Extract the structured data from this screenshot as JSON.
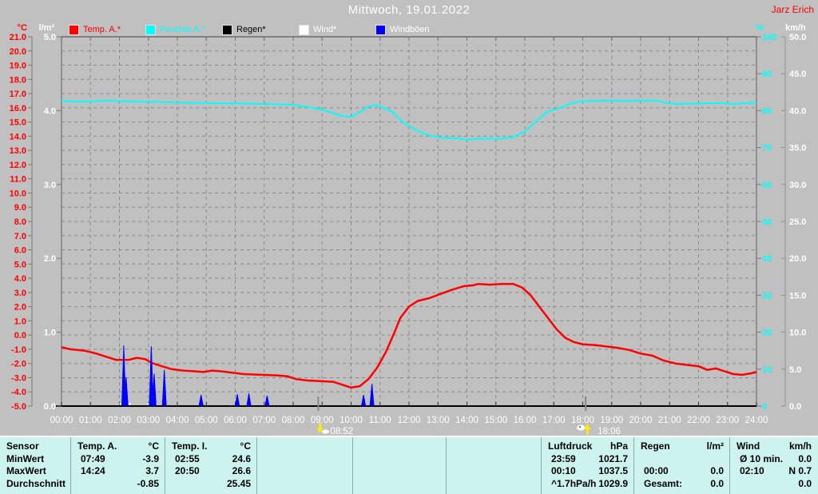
{
  "header": {
    "title": "Mittwoch, 19.01.2022",
    "station": "Jarz Erich"
  },
  "legend": [
    {
      "label": "Temp. A.*",
      "swatch": "#ff0000",
      "text_color": "#ff0000"
    },
    {
      "label": "Feuchte A.*",
      "swatch": "#00ffff",
      "text_color": "#00ffff"
    },
    {
      "label": "Regen*",
      "swatch": "#000000",
      "text_color": "#000000"
    },
    {
      "label": "Wind*",
      "swatch": "#ffffff",
      "text_color": "#ffffff"
    },
    {
      "label": "Windböen",
      "swatch": "#0000ff",
      "text_color": "#ffffff"
    }
  ],
  "axes": {
    "temp": {
      "unit": "°C",
      "color": "#ff0000",
      "max": 21,
      "min": -5,
      "step": 1,
      "ticks": [
        "21.0",
        "20.0",
        "19.0",
        "18.0",
        "17.0",
        "16.0",
        "15.0",
        "14.0",
        "13.0",
        "12.0",
        "11.0",
        "10.0",
        "9.0",
        "8.0",
        "7.0",
        "6.0",
        "5.0",
        "4.0",
        "3.0",
        "2.0",
        "1.0",
        "0.0",
        "-1.0",
        "-2.0",
        "-3.0",
        "-4.0",
        "-5.0"
      ]
    },
    "rain": {
      "unit": "l/m²",
      "color": "#ffffff",
      "max": 5,
      "min": 0,
      "step": 1,
      "ticks": [
        "5.0",
        "4.0",
        "3.0",
        "2.0",
        "1.0",
        "0.0"
      ]
    },
    "humidity": {
      "unit": "%",
      "color": "#00ffff",
      "max": 100,
      "min": 0,
      "step": 10,
      "ticks": [
        "100",
        "90",
        "80",
        "70",
        "60",
        "50",
        "40",
        "30",
        "20",
        "10",
        "0"
      ]
    },
    "wind": {
      "unit": "km/h",
      "color": "#ffffff",
      "max": 50,
      "min": 0,
      "step": 5,
      "ticks": [
        "50.0",
        "45.0",
        "40.0",
        "35.0",
        "30.0",
        "25.0",
        "20.0",
        "15.0",
        "10.0",
        "5.0",
        "0.0"
      ]
    }
  },
  "x_axis": {
    "labels": [
      "00:00",
      "01:00",
      "02:00",
      "03:00",
      "04:00",
      "05:00",
      "06:00",
      "07:00",
      "08:00",
      "09:00",
      "10:00",
      "11:00",
      "12:00",
      "13:00",
      "14:00",
      "15:00",
      "16:00",
      "17:00",
      "18:00",
      "19:00",
      "20:00",
      "21:00",
      "22:00",
      "23:00",
      "24:00"
    ]
  },
  "markers": [
    {
      "hour": 8.867,
      "label": "08:52",
      "icon": "arrow-down-icon"
    },
    {
      "hour": 18.1,
      "label": "18:06",
      "icon": "arrow-up-icon"
    }
  ],
  "chart_data": {
    "type": "line",
    "title": "Mittwoch, 19.01.2022",
    "x_unit": "hour_of_day",
    "x_range": [
      0,
      24
    ],
    "grid": "dashed",
    "series": [
      {
        "name": "Temp. A.",
        "unit": "°C",
        "axis": "temp",
        "color": "#ff0000",
        "points": [
          [
            0,
            -0.85
          ],
          [
            0.3,
            -1.0
          ],
          [
            0.8,
            -1.1
          ],
          [
            1.2,
            -1.3
          ],
          [
            1.5,
            -1.5
          ],
          [
            1.9,
            -1.75
          ],
          [
            2.3,
            -1.75
          ],
          [
            2.6,
            -1.6
          ],
          [
            2.9,
            -1.7
          ],
          [
            3.1,
            -1.95
          ],
          [
            3.4,
            -2.15
          ],
          [
            3.8,
            -2.4
          ],
          [
            4.2,
            -2.5
          ],
          [
            4.6,
            -2.55
          ],
          [
            4.9,
            -2.6
          ],
          [
            5.2,
            -2.5
          ],
          [
            5.5,
            -2.55
          ],
          [
            5.9,
            -2.65
          ],
          [
            6.3,
            -2.75
          ],
          [
            6.9,
            -2.8
          ],
          [
            7.5,
            -2.85
          ],
          [
            7.8,
            -2.9
          ],
          [
            8.1,
            -3.1
          ],
          [
            8.5,
            -3.2
          ],
          [
            9.0,
            -3.25
          ],
          [
            9.4,
            -3.3
          ],
          [
            9.7,
            -3.5
          ],
          [
            10.0,
            -3.7
          ],
          [
            10.3,
            -3.6
          ],
          [
            10.6,
            -3.1
          ],
          [
            10.9,
            -2.3
          ],
          [
            11.2,
            -1.2
          ],
          [
            11.5,
            0.2
          ],
          [
            11.7,
            1.2
          ],
          [
            12.0,
            2.0
          ],
          [
            12.3,
            2.4
          ],
          [
            12.7,
            2.6
          ],
          [
            13.1,
            2.9
          ],
          [
            13.5,
            3.2
          ],
          [
            13.9,
            3.45
          ],
          [
            14.2,
            3.5
          ],
          [
            14.4,
            3.6
          ],
          [
            14.8,
            3.55
          ],
          [
            15.2,
            3.6
          ],
          [
            15.6,
            3.6
          ],
          [
            15.9,
            3.35
          ],
          [
            16.2,
            2.8
          ],
          [
            16.5,
            2.0
          ],
          [
            16.8,
            1.2
          ],
          [
            17.1,
            0.4
          ],
          [
            17.4,
            -0.2
          ],
          [
            17.7,
            -0.5
          ],
          [
            18.0,
            -0.65
          ],
          [
            18.4,
            -0.7
          ],
          [
            18.8,
            -0.8
          ],
          [
            19.2,
            -0.9
          ],
          [
            19.6,
            -1.05
          ],
          [
            20.0,
            -1.3
          ],
          [
            20.4,
            -1.45
          ],
          [
            20.8,
            -1.8
          ],
          [
            21.2,
            -2.0
          ],
          [
            21.6,
            -2.1
          ],
          [
            22.0,
            -2.2
          ],
          [
            22.3,
            -2.45
          ],
          [
            22.6,
            -2.35
          ],
          [
            22.9,
            -2.55
          ],
          [
            23.2,
            -2.75
          ],
          [
            23.5,
            -2.8
          ],
          [
            23.8,
            -2.7
          ],
          [
            24,
            -2.6
          ]
        ]
      },
      {
        "name": "Feuchte A.",
        "unit": "%",
        "axis": "humidity",
        "color": "#00ffff",
        "points": [
          [
            0,
            82.7
          ],
          [
            0.5,
            82.4
          ],
          [
            1,
            82.5
          ],
          [
            1.5,
            82.7
          ],
          [
            2,
            82.6
          ],
          [
            2.5,
            82.4
          ],
          [
            3,
            82.4
          ],
          [
            3.5,
            82.3
          ],
          [
            4,
            82.2
          ],
          [
            4.5,
            82.1
          ],
          [
            5,
            82.1
          ],
          [
            5.5,
            82.0
          ],
          [
            6,
            82.0
          ],
          [
            6.5,
            81.9
          ],
          [
            7,
            81.8
          ],
          [
            7.5,
            81.7
          ],
          [
            8,
            81.6
          ],
          [
            8.4,
            81.1
          ],
          [
            8.8,
            80.6
          ],
          [
            9.1,
            80.0
          ],
          [
            9.4,
            79.3
          ],
          [
            9.7,
            78.5
          ],
          [
            10,
            78.3
          ],
          [
            10.3,
            79.6
          ],
          [
            10.6,
            81.1
          ],
          [
            10.8,
            81.5
          ],
          [
            11,
            81.2
          ],
          [
            11.4,
            79.8
          ],
          [
            11.8,
            76.8
          ],
          [
            12.1,
            75.4
          ],
          [
            12.5,
            73.8
          ],
          [
            12.9,
            72.9
          ],
          [
            13.3,
            72.6
          ],
          [
            13.7,
            72.5
          ],
          [
            14,
            72.1
          ],
          [
            14.4,
            72.4
          ],
          [
            14.8,
            72.4
          ],
          [
            15.2,
            72.5
          ],
          [
            15.6,
            72.8
          ],
          [
            16,
            74.3
          ],
          [
            16.4,
            77.2
          ],
          [
            16.8,
            79.8
          ],
          [
            17.2,
            80.7
          ],
          [
            17.6,
            82.0
          ],
          [
            18,
            82.6
          ],
          [
            18.5,
            82.6
          ],
          [
            19,
            82.7
          ],
          [
            19.5,
            82.6
          ],
          [
            20,
            82.7
          ],
          [
            20.6,
            82.7
          ],
          [
            20.9,
            82.1
          ],
          [
            21.3,
            81.8
          ],
          [
            21.8,
            81.9
          ],
          [
            22.3,
            82.0
          ],
          [
            22.8,
            82.1
          ],
          [
            23.2,
            81.7
          ],
          [
            23.5,
            82.0
          ],
          [
            24,
            82.2
          ]
        ]
      },
      {
        "name": "Regen",
        "unit": "l/m²",
        "axis": "rain",
        "color": "#000000",
        "points": [
          [
            0,
            0
          ],
          [
            24,
            0
          ]
        ]
      },
      {
        "name": "Wind",
        "unit": "km/h",
        "axis": "wind",
        "color": "#ffffff",
        "points": [
          [
            0,
            0
          ],
          [
            24,
            0
          ]
        ],
        "bump_segments": [
          {
            "from": 2.0,
            "to": 2.4,
            "value": 0.3
          },
          {
            "from": 2.95,
            "to": 3.3,
            "value": 0.3
          }
        ]
      },
      {
        "name": "Windböen",
        "unit": "km/h",
        "axis": "wind",
        "color": "#0000ff",
        "style": "spikes",
        "spikes": [
          [
            2.15,
            8.2
          ],
          [
            2.23,
            3.9
          ],
          [
            3.1,
            8.1
          ],
          [
            3.2,
            4.4
          ],
          [
            3.55,
            4.9
          ],
          [
            4.82,
            1.5
          ],
          [
            6.07,
            1.6
          ],
          [
            6.47,
            1.7
          ],
          [
            7.1,
            1.4
          ],
          [
            10.43,
            1.5
          ],
          [
            10.72,
            3.0
          ]
        ]
      }
    ]
  },
  "table": {
    "row_labels": [
      "Sensor",
      "MinWert",
      "MaxWert",
      "Durchschnitt"
    ],
    "columns": [
      {
        "header": "Temp. A.",
        "unit": "°C",
        "rows": [
          [
            "07:49",
            "-3.9"
          ],
          [
            "14:24",
            "3.7"
          ],
          [
            "",
            "-0.85"
          ]
        ]
      },
      {
        "header": "Temp. I.",
        "unit": "°C",
        "rows": [
          [
            "02:55",
            "24.6"
          ],
          [
            "20:50",
            "26.6"
          ],
          [
            "",
            "25.45"
          ]
        ]
      },
      {
        "header": "",
        "unit": "",
        "rows": [
          [
            "",
            ""
          ],
          [
            "",
            ""
          ],
          [
            "",
            ""
          ]
        ]
      },
      {
        "header": "",
        "unit": "",
        "rows": [
          [
            "",
            ""
          ],
          [
            "",
            ""
          ],
          [
            "",
            ""
          ]
        ]
      },
      {
        "header": "",
        "unit": "",
        "rows": [
          [
            "",
            ""
          ],
          [
            "",
            ""
          ],
          [
            "",
            ""
          ]
        ]
      },
      {
        "header": "Luftdruck",
        "unit": "hPa",
        "rows": [
          [
            "23:59",
            "1021.7"
          ],
          [
            "00:10",
            "1037.5"
          ],
          [
            "^1.7hPa/h",
            "1029.9"
          ]
        ]
      },
      {
        "header": "Regen",
        "unit": "l/m²",
        "rows": [
          [
            "",
            ""
          ],
          [
            "00:00",
            "0.0"
          ],
          [
            "Gesamt:",
            "0.0"
          ]
        ]
      },
      {
        "header": "Wind",
        "unit": "km/h",
        "rows": [
          [
            "Ø 10 min.",
            "0.0"
          ],
          [
            "02:10",
            "N 0.7"
          ],
          [
            "",
            "0.0"
          ]
        ]
      }
    ]
  }
}
